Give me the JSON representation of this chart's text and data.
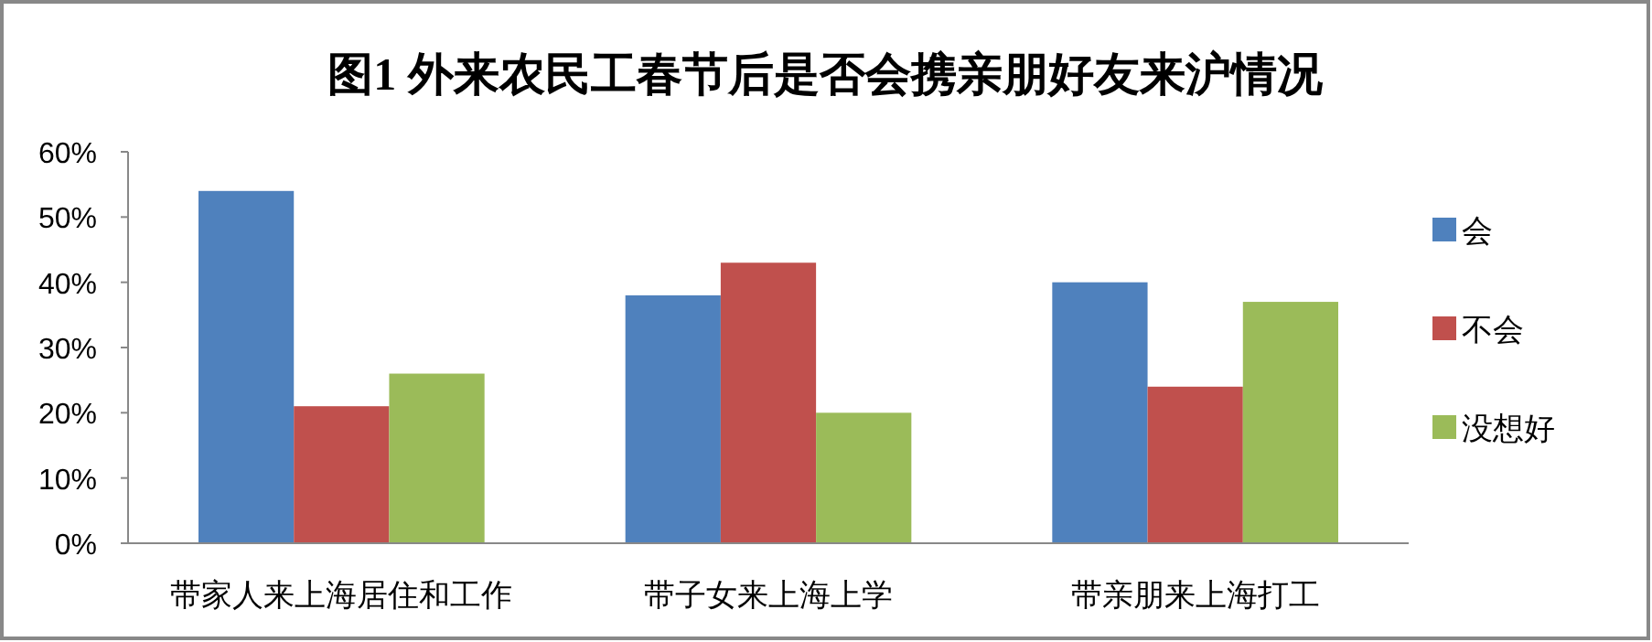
{
  "chart_data": {
    "type": "bar",
    "title": "图1  外来农民工春节后是否会携亲朋好友来沪情况",
    "categories": [
      "带家人来上海居住和工作",
      "带子女来上海上学",
      "带亲朋来上海打工"
    ],
    "series": [
      {
        "name": "会",
        "color": "#4f81bd",
        "values": [
          54,
          38,
          40
        ]
      },
      {
        "name": "不会",
        "color": "#c0504d",
        "values": [
          21,
          43,
          24
        ]
      },
      {
        "name": "没想好",
        "color": "#9bbb59",
        "values": [
          26,
          20,
          37
        ]
      }
    ],
    "ylim": [
      0,
      60
    ],
    "yticks": [
      {
        "value": 0,
        "label": "0%"
      },
      {
        "value": 10,
        "label": "10%"
      },
      {
        "value": 20,
        "label": "20%"
      },
      {
        "value": 30,
        "label": "30%"
      },
      {
        "value": 40,
        "label": "40%"
      },
      {
        "value": 50,
        "label": "50%"
      },
      {
        "value": 60,
        "label": "60%"
      }
    ],
    "grid": false,
    "legend": "right"
  }
}
